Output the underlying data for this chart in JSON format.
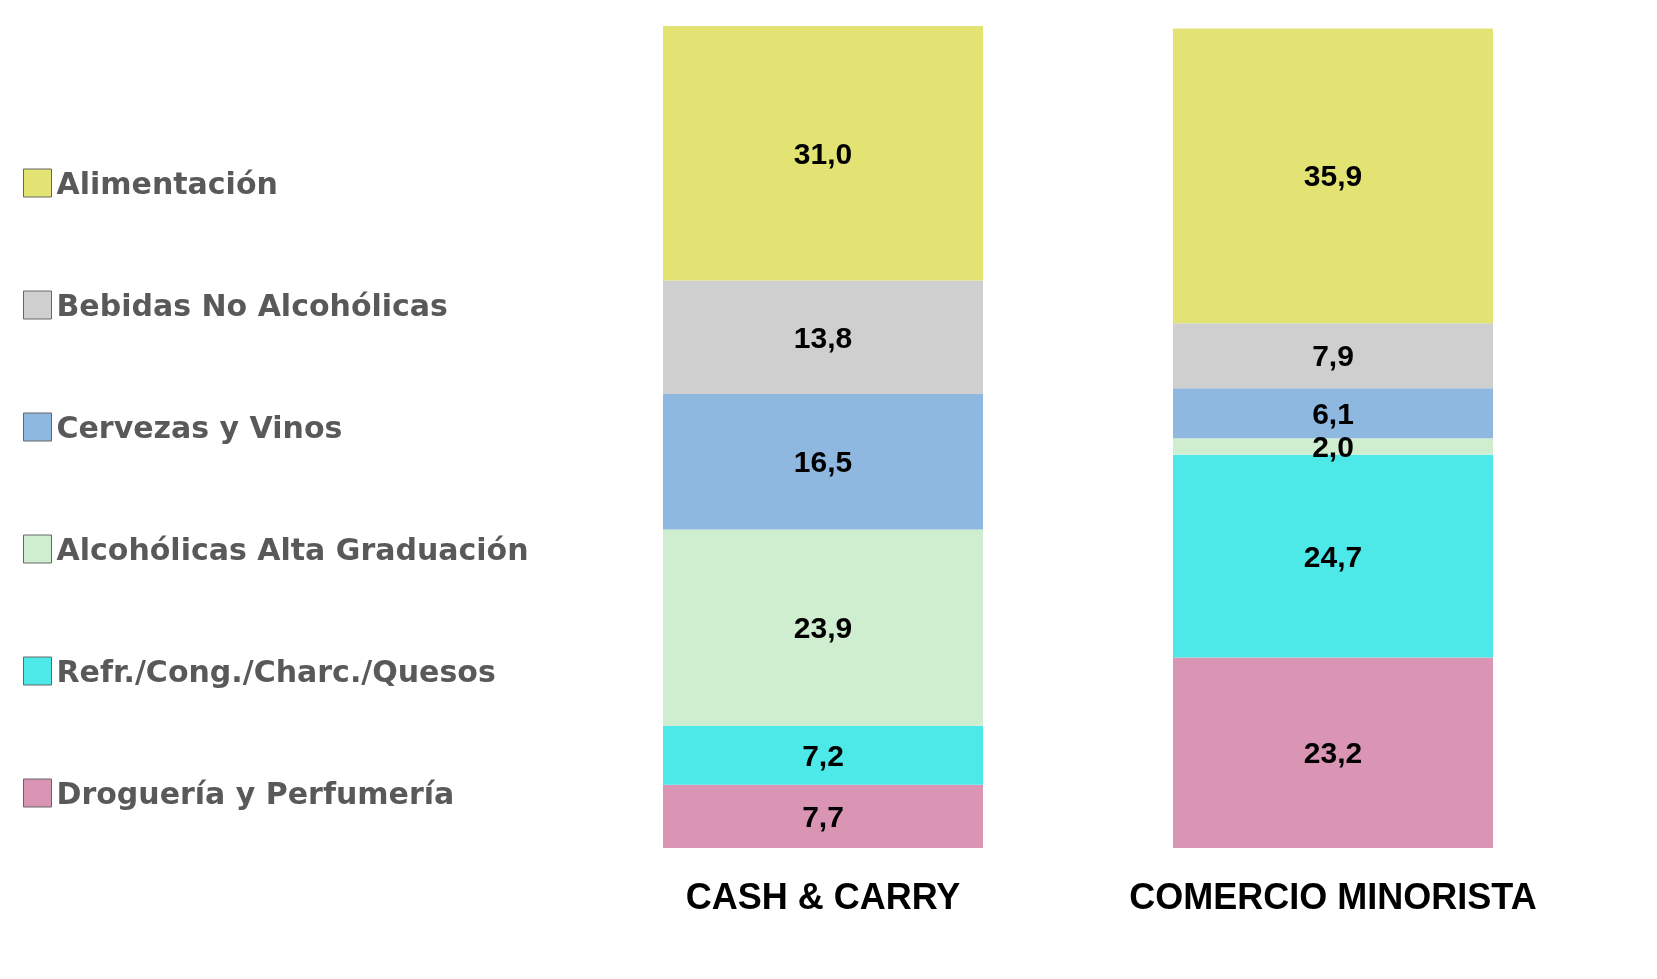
{
  "chart_data": {
    "type": "bar",
    "stacked": true,
    "legend": "left",
    "categories": [
      "CASH & CARRY",
      "COMERCIO MINORISTA"
    ],
    "series": [
      {
        "name": "Droguería y Perfumería",
        "color": "#d995b3",
        "values": [
          7.7,
          23.2
        ],
        "value_labels": [
          "7,7",
          "23,2"
        ]
      },
      {
        "name": "Refr./Cong./Charc./Quesos",
        "color": "#4de8e8",
        "values": [
          7.2,
          24.7
        ],
        "value_labels": [
          "7,2",
          "24,7"
        ]
      },
      {
        "name": "Alcohólicas Alta Graduación",
        "color": "#cfeecf",
        "values": [
          23.9,
          2.0
        ],
        "value_labels": [
          "23,9",
          "2,0"
        ]
      },
      {
        "name": "Cervezas y Vinos",
        "color": "#8fb8e0",
        "values": [
          16.5,
          6.1
        ],
        "value_labels": [
          "16,5",
          "6,1"
        ]
      },
      {
        "name": "Bebidas No Alcohólicas",
        "color": "#cfcfcf",
        "values": [
          13.8,
          7.9
        ],
        "value_labels": [
          "13,8",
          "7,9"
        ]
      },
      {
        "name": "Alimentación",
        "color": "#e3e373",
        "values": [
          31.0,
          35.9
        ],
        "value_labels": [
          "31,0",
          "35,9"
        ]
      }
    ]
  }
}
